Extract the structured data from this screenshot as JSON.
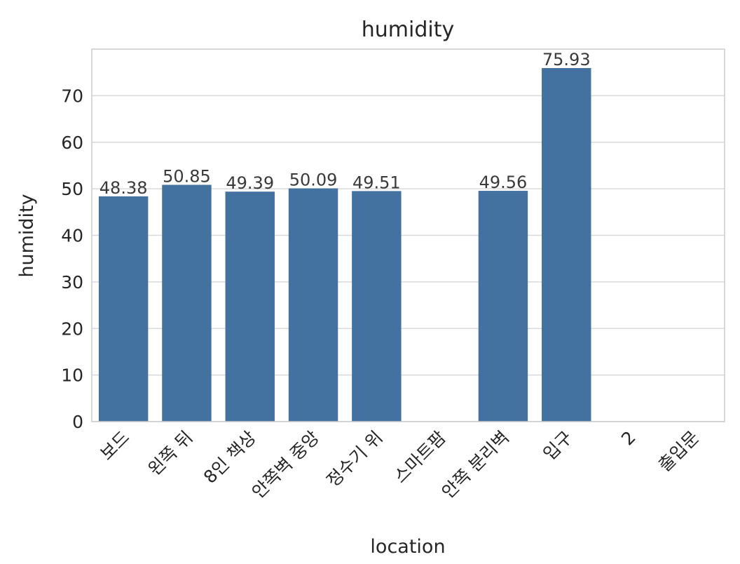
{
  "chart_data": {
    "type": "bar",
    "title": "humidity",
    "xlabel": "location",
    "ylabel": "humidity",
    "ylim": [
      0,
      80
    ],
    "yticks": [
      0,
      10,
      20,
      30,
      40,
      50,
      60,
      70
    ],
    "grid": true,
    "categories": [
      "보드",
      "왼쪽 뒤",
      "8인 책상",
      "안쪽벽 중앙",
      "정수기 위",
      "스마트팜",
      "안쪽 분리벽",
      "입구",
      "2",
      "출입문"
    ],
    "values": [
      48.38,
      50.85,
      49.39,
      50.09,
      49.51,
      null,
      49.56,
      75.93,
      null,
      null
    ],
    "value_labels": [
      "48.38",
      "50.85",
      "49.39",
      "50.09",
      "49.51",
      "",
      "49.56",
      "75.93",
      "",
      ""
    ],
    "bar_color": "#4472a0"
  }
}
